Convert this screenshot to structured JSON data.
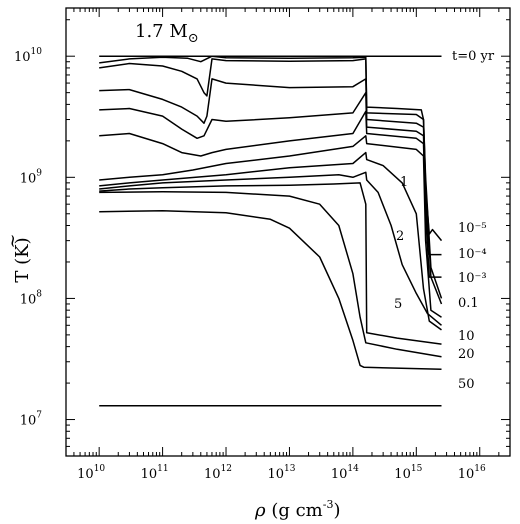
{
  "chart_data": {
    "type": "line",
    "title": "1.7 M⊙",
    "xlabel": "ρ  (g cm⁻³)",
    "ylabel": "T̃  (K)",
    "x_scale": "log",
    "y_scale": "log",
    "xlim": [
      3000000000.0,
      3e+16
    ],
    "ylim": [
      5000000.0,
      25000000000.0
    ],
    "x_ticks": [
      {
        "value": 10000000000.0,
        "base": "10",
        "exp": "10"
      },
      {
        "value": 100000000000.0,
        "base": "10",
        "exp": "11"
      },
      {
        "value": 1000000000000.0,
        "base": "10",
        "exp": "12"
      },
      {
        "value": 10000000000000.0,
        "base": "10",
        "exp": "13"
      },
      {
        "value": 100000000000000.0,
        "base": "10",
        "exp": "14"
      },
      {
        "value": 1000000000000000.0,
        "base": "10",
        "exp": "15"
      },
      {
        "value": 1e+16,
        "base": "10",
        "exp": "16"
      }
    ],
    "y_ticks": [
      {
        "value": 10000000.0,
        "base": "10",
        "exp": "7"
      },
      {
        "value": 100000000.0,
        "base": "10",
        "exp": "8"
      },
      {
        "value": 1000000000.0,
        "base": "10",
        "exp": "9"
      },
      {
        "value": 10000000000.0,
        "base": "10",
        "exp": "10"
      }
    ],
    "grid": false,
    "series": [
      {
        "label": "t=0 yr",
        "points": [
          [
            10000000000.0,
            10000000000.0
          ],
          [
            2500000000000000.0,
            10000000000.0
          ]
        ]
      },
      {
        "points": [
          [
            10000000000.0,
            8800000000.0
          ],
          [
            30000000000.0,
            9500000000.0
          ],
          [
            100000000000.0,
            9800000000.0
          ],
          [
            250000000000.0,
            9600000000.0
          ],
          [
            400000000000.0,
            9000000000.0
          ],
          [
            600000000000.0,
            10000000000.0
          ],
          [
            1000000000000.0,
            9700000000.0
          ],
          [
            10000000000000.0,
            9600000000.0
          ],
          [
            100000000000000.0,
            9700000000.0
          ],
          [
            160000000000000.0,
            9800000000.0
          ],
          [
            165000000000000.0,
            3800000000.0
          ],
          [
            500000000000000.0,
            3700000000.0
          ],
          [
            1200000000000000.0,
            3600000000.0
          ],
          [
            1300000000000000.0,
            3000000000.0
          ],
          [
            1400000000000000.0,
            1000000000.0
          ],
          [
            1700000000000000.0,
            180000000.0
          ],
          [
            2500000000000000.0,
            100000000.0
          ]
        ]
      },
      {
        "points": [
          [
            10000000000.0,
            8000000000.0
          ],
          [
            30000000000.0,
            8700000000.0
          ],
          [
            100000000000.0,
            8300000000.0
          ],
          [
            200000000000.0,
            7500000000.0
          ],
          [
            350000000000.0,
            6500000000.0
          ],
          [
            450000000000.0,
            5000000000.0
          ],
          [
            500000000000.0,
            4700000000.0
          ],
          [
            600000000000.0,
            9500000000.0
          ],
          [
            1000000000000.0,
            9200000000.0
          ],
          [
            10000000000000.0,
            9100000000.0
          ],
          [
            100000000000000.0,
            9200000000.0
          ],
          [
            160000000000000.0,
            9500000000.0
          ],
          [
            165000000000000.0,
            3400000000.0
          ],
          [
            1000000000000000.0,
            3300000000.0
          ],
          [
            1300000000000000.0,
            3000000000.0
          ],
          [
            1400000000000000.0,
            900000000.0
          ],
          [
            1700000000000000.0,
            150000000.0
          ],
          [
            2500000000000000.0,
            90000000.0
          ]
        ]
      },
      {
        "label": "10⁻⁵",
        "points": [
          [
            10000000000.0,
            5200000000.0
          ],
          [
            30000000000.0,
            5300000000.0
          ],
          [
            100000000000.0,
            4400000000.0
          ],
          [
            200000000000.0,
            3800000000.0
          ],
          [
            350000000000.0,
            3200000000.0
          ],
          [
            450000000000.0,
            2800000000.0
          ],
          [
            500000000000.0,
            3200000000.0
          ],
          [
            600000000000.0,
            6500000000.0
          ],
          [
            1000000000000.0,
            6000000000.0
          ],
          [
            10000000000000.0,
            5500000000.0
          ],
          [
            100000000000000.0,
            5600000000.0
          ],
          [
            160000000000000.0,
            6500000000.0
          ],
          [
            165000000000000.0,
            3000000000.0
          ],
          [
            1000000000000000.0,
            2800000000.0
          ],
          [
            1300000000000000.0,
            2600000000.0
          ],
          [
            1400000000000000.0,
            800000000.0
          ],
          [
            1600000000000000.0,
            340000000.0
          ],
          [
            1800000000000000.0,
            370000000.0
          ],
          [
            2500000000000000.0,
            300000000.0
          ]
        ]
      },
      {
        "label": "10⁻⁴",
        "points": [
          [
            10000000000.0,
            3600000000.0
          ],
          [
            30000000000.0,
            3700000000.0
          ],
          [
            100000000000.0,
            3200000000.0
          ],
          [
            200000000000.0,
            2500000000.0
          ],
          [
            350000000000.0,
            2100000000.0
          ],
          [
            450000000000.0,
            2200000000.0
          ],
          [
            600000000000.0,
            3000000000.0
          ],
          [
            1000000000000.0,
            2900000000.0
          ],
          [
            10000000000000.0,
            3100000000.0
          ],
          [
            100000000000000.0,
            3400000000.0
          ],
          [
            160000000000000.0,
            5000000000.0
          ],
          [
            165000000000000.0,
            2600000000.0
          ],
          [
            1000000000000000.0,
            2400000000.0
          ],
          [
            1300000000000000.0,
            2200000000.0
          ],
          [
            1400000000000000.0,
            650000000.0
          ],
          [
            1600000000000000.0,
            230000000.0
          ],
          [
            2500000000000000.0,
            230000000.0
          ]
        ]
      },
      {
        "label": "10⁻³",
        "points": [
          [
            10000000000.0,
            2200000000.0
          ],
          [
            30000000000.0,
            2300000000.0
          ],
          [
            100000000000.0,
            1900000000.0
          ],
          [
            200000000000.0,
            1600000000.0
          ],
          [
            400000000000.0,
            1500000000.0
          ],
          [
            600000000000.0,
            1600000000.0
          ],
          [
            1000000000000.0,
            1700000000.0
          ],
          [
            10000000000000.0,
            2000000000.0
          ],
          [
            100000000000000.0,
            2300000000.0
          ],
          [
            160000000000000.0,
            3500000000.0
          ],
          [
            165000000000000.0,
            2300000000.0
          ],
          [
            1000000000000000.0,
            2100000000.0
          ],
          [
            1300000000000000.0,
            1900000000.0
          ],
          [
            1400000000000000.0,
            500000000.0
          ],
          [
            1600000000000000.0,
            150000000.0
          ],
          [
            2500000000000000.0,
            150000000.0
          ]
        ]
      },
      {
        "label": "0.1",
        "points": [
          [
            10000000000.0,
            950000000.0
          ],
          [
            30000000000.0,
            1000000000.0
          ],
          [
            100000000000.0,
            1050000000.0
          ],
          [
            300000000000.0,
            1150000000.0
          ],
          [
            1000000000000.0,
            1300000000.0
          ],
          [
            10000000000000.0,
            1500000000.0
          ],
          [
            100000000000000.0,
            1800000000.0
          ],
          [
            160000000000000.0,
            2200000000.0
          ],
          [
            165000000000000.0,
            1900000000.0
          ],
          [
            1000000000000000.0,
            1700000000.0
          ],
          [
            1300000000000000.0,
            1500000000.0
          ],
          [
            1400000000000000.0,
            300000000.0
          ],
          [
            1700000000000000.0,
            80000000.0
          ],
          [
            2500000000000000.0,
            70000000.0
          ]
        ]
      },
      {
        "label": "1",
        "points": [
          [
            10000000000.0,
            850000000.0
          ],
          [
            30000000000.0,
            900000000.0
          ],
          [
            100000000000.0,
            950000000.0
          ],
          [
            1000000000000.0,
            1050000000.0
          ],
          [
            10000000000000.0,
            1200000000.0
          ],
          [
            100000000000000.0,
            1300000000.0
          ],
          [
            160000000000000.0,
            1600000000.0
          ],
          [
            165000000000000.0,
            1400000000.0
          ],
          [
            300000000000000.0,
            1250000000.0
          ],
          [
            600000000000000.0,
            900000000.0
          ],
          [
            1000000000000000.0,
            500000000.0
          ],
          [
            1300000000000000.0,
            120000000.0
          ],
          [
            1600000000000000.0,
            65000000.0
          ],
          [
            2500000000000000.0,
            55000000.0
          ]
        ]
      },
      {
        "label": "2",
        "points": [
          [
            10000000000.0,
            800000000.0
          ],
          [
            30000000000.0,
            850000000.0
          ],
          [
            100000000000.0,
            900000000.0
          ],
          [
            1000000000000.0,
            950000000.0
          ],
          [
            10000000000000.0,
            1000000000.0
          ],
          [
            60000000000000.0,
            1050000000.0
          ],
          [
            100000000000000.0,
            1000000000.0
          ],
          [
            160000000000000.0,
            1100000000.0
          ],
          [
            165000000000000.0,
            950000000.0
          ],
          [
            250000000000000.0,
            750000000.0
          ],
          [
            400000000000000.0,
            400000000.0
          ],
          [
            600000000000000.0,
            190000000.0
          ],
          [
            1000000000000000.0,
            110000000.0
          ],
          [
            1500000000000000.0,
            75000000.0
          ],
          [
            2500000000000000.0,
            60000000.0
          ]
        ]
      },
      {
        "label": "5",
        "points": [
          [
            10000000000.0,
            770000000.0
          ],
          [
            30000000000.0,
            800000000.0
          ],
          [
            100000000000.0,
            820000000.0
          ],
          [
            1000000000000.0,
            850000000.0
          ],
          [
            10000000000000.0,
            860000000.0
          ],
          [
            50000000000000.0,
            880000000.0
          ],
          [
            130000000000000.0,
            900000000.0
          ],
          [
            160000000000000.0,
            600000000.0
          ],
          [
            165000000000000.0,
            52000000.0
          ],
          [
            500000000000000.0,
            47000000.0
          ],
          [
            2500000000000000.0,
            42000000.0
          ]
        ]
      },
      {
        "label": "10",
        "points": [
          [
            10000000000.0,
            750000000.0
          ],
          [
            100000000000.0,
            760000000.0
          ],
          [
            1000000000000.0,
            750000000.0
          ],
          [
            10000000000000.0,
            700000000.0
          ],
          [
            30000000000000.0,
            600000000.0
          ],
          [
            60000000000000.0,
            400000000.0
          ],
          [
            100000000000000.0,
            160000000.0
          ],
          [
            130000000000000.0,
            70000000.0
          ],
          [
            160000000000000.0,
            43000000.0
          ],
          [
            500000000000000.0,
            38000000.0
          ],
          [
            2500000000000000.0,
            33000000.0
          ]
        ]
      },
      {
        "label": "20",
        "points": [
          [
            10000000000.0,
            520000000.0
          ],
          [
            100000000000.0,
            530000000.0
          ],
          [
            1000000000000.0,
            510000000.0
          ],
          [
            5000000000000.0,
            450000000.0
          ],
          [
            10000000000000.0,
            380000000.0
          ],
          [
            30000000000000.0,
            220000000.0
          ],
          [
            60000000000000.0,
            100000000.0
          ],
          [
            100000000000000.0,
            45000000.0
          ],
          [
            130000000000000.0,
            28000000.0
          ],
          [
            150000000000000.0,
            27000000.0
          ],
          [
            2500000000000000.0,
            26000000.0
          ]
        ]
      },
      {
        "label": "50",
        "points": [
          [
            10000000000.0,
            13000000.0
          ],
          [
            2500000000000000.0,
            13000000.0
          ]
        ]
      }
    ]
  }
}
